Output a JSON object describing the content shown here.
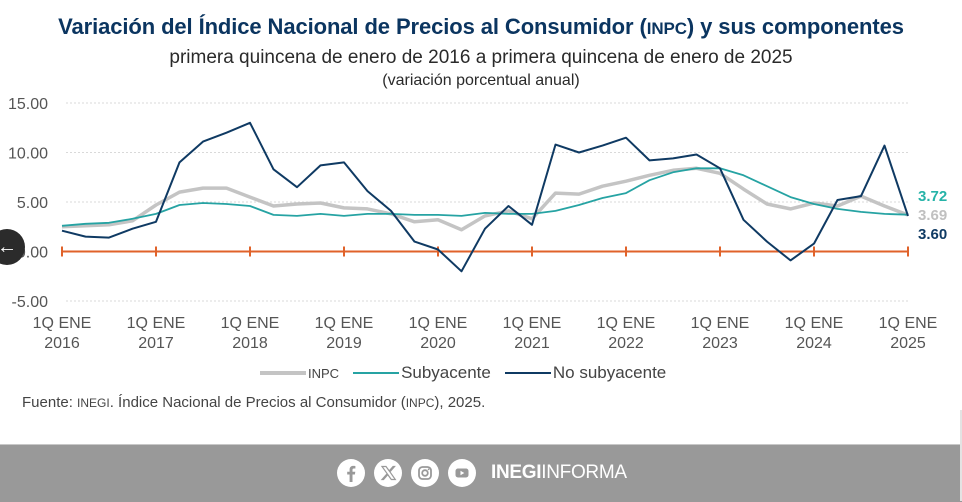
{
  "header": {
    "title_pre": "Variación del Índice Nacional de Precios al Consumidor (",
    "title_abbr": "INPC",
    "title_post": ") y sus componentes",
    "subtitle": "primera quincena de enero de 2016 a primera quincena de enero de 2025",
    "unit": "(variación porcentual anual)"
  },
  "chart_data": {
    "type": "line",
    "title": "Variación del Índice Nacional de Precios al Consumidor (INPC) y sus componentes",
    "subtitle": "primera quincena de enero de 2016 a primera quincena de enero de 2025",
    "ylabel": "variación porcentual anual",
    "xlabel": "",
    "ylim": [
      -5,
      15
    ],
    "yticks": [
      "15.00",
      "10.00",
      "5.00",
      "0.00",
      "-5.00"
    ],
    "ytick_values": [
      15,
      10,
      5,
      0,
      -5
    ],
    "xtick_labels": [
      [
        "1Q ENE",
        "2016"
      ],
      [
        "1Q ENE",
        "2017"
      ],
      [
        "1Q ENE",
        "2018"
      ],
      [
        "1Q ENE",
        "2019"
      ],
      [
        "1Q ENE",
        "2020"
      ],
      [
        "1Q ENE",
        "2021"
      ],
      [
        "1Q ENE",
        "2022"
      ],
      [
        "1Q ENE",
        "2023"
      ],
      [
        "1Q ENE",
        "2024"
      ],
      [
        "1Q ENE",
        "2025"
      ]
    ],
    "x_range": [
      2016.0,
      2025.0
    ],
    "x": [
      2016.0,
      2016.25,
      2016.5,
      2016.75,
      2017.0,
      2017.25,
      2017.5,
      2017.75,
      2018.0,
      2018.25,
      2018.5,
      2018.75,
      2019.0,
      2019.25,
      2019.5,
      2019.75,
      2020.0,
      2020.25,
      2020.5,
      2020.75,
      2021.0,
      2021.25,
      2021.5,
      2021.75,
      2022.0,
      2022.25,
      2022.5,
      2022.75,
      2023.0,
      2023.25,
      2023.5,
      2023.75,
      2024.0,
      2024.25,
      2024.5,
      2024.75,
      2025.0
    ],
    "grid": true,
    "zero_line_color": "#e0622a",
    "series": [
      {
        "name": "INPC",
        "color": "#c4c4c4",
        "values": [
          2.5,
          2.6,
          2.7,
          3.1,
          4.7,
          6.0,
          6.4,
          6.4,
          5.5,
          4.6,
          4.8,
          4.9,
          4.4,
          4.3,
          3.8,
          3.0,
          3.2,
          2.2,
          3.6,
          4.1,
          3.3,
          5.9,
          5.8,
          6.6,
          7.1,
          7.7,
          8.2,
          8.4,
          7.9,
          6.3,
          4.8,
          4.3,
          4.9,
          4.6,
          5.6,
          4.6,
          3.69
        ]
      },
      {
        "name": "Subyacente",
        "color": "#26a3a3",
        "values": [
          2.6,
          2.8,
          2.9,
          3.3,
          3.8,
          4.7,
          4.9,
          4.8,
          4.6,
          3.7,
          3.6,
          3.8,
          3.6,
          3.8,
          3.8,
          3.7,
          3.7,
          3.6,
          3.9,
          3.8,
          3.8,
          4.1,
          4.7,
          5.4,
          5.9,
          7.2,
          8.0,
          8.4,
          8.4,
          7.7,
          6.6,
          5.5,
          4.8,
          4.3,
          4.0,
          3.8,
          3.72
        ]
      },
      {
        "name": "No subyacente",
        "color": "#0f3a63",
        "values": [
          2.1,
          1.5,
          1.4,
          2.3,
          3.0,
          9.0,
          11.1,
          12.0,
          13.0,
          8.3,
          6.5,
          8.7,
          9.0,
          6.1,
          4.1,
          1.0,
          0.2,
          -2.0,
          2.3,
          4.6,
          2.7,
          10.8,
          10.0,
          10.7,
          11.5,
          9.2,
          9.4,
          9.8,
          8.4,
          3.2,
          1.0,
          -0.9,
          0.8,
          5.2,
          5.6,
          10.7,
          3.6
        ]
      }
    ],
    "end_labels": [
      {
        "series": "Subyacente",
        "text": "3.72",
        "color": "#26b3a8"
      },
      {
        "series": "INPC",
        "text": "3.69",
        "color": "#c0c0c0"
      },
      {
        "series": "No subyacente",
        "text": "3.60",
        "color": "#0f3a63"
      }
    ],
    "legend_position": "bottom-center"
  },
  "legend": [
    {
      "label": "INPC",
      "color": "#c4c4c4"
    },
    {
      "label": "Subyacente",
      "color": "#26a3a3"
    },
    {
      "label": "No subyacente",
      "color": "#0f3a63"
    }
  ],
  "source": {
    "pre": "Fuente: ",
    "abbr1": "INEGI",
    "mid": ". Índice Nacional de Precios al Consumidor (",
    "abbr2": "INPC",
    "post": "), 2025."
  },
  "footer": {
    "icons": [
      "facebook-icon",
      "x-icon",
      "instagram-icon",
      "youtube-icon"
    ],
    "brand_bold": "INEGI",
    "brand_light": "INFORMA",
    "background": "#999999"
  },
  "overlay": {
    "back_glyph": "←"
  }
}
